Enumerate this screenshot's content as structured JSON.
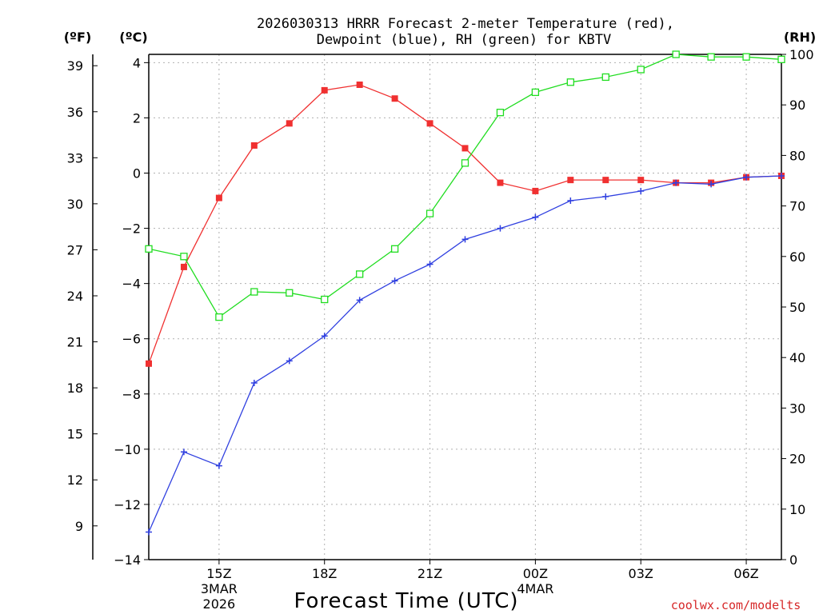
{
  "chart_data": {
    "type": "line",
    "title_line1": "2026030313 HRRR Forecast 2-meter Temperature (red),",
    "title_line2": "Dewpoint (blue), RH (green) for KBTV",
    "xlabel": "Forecast Time (UTC)",
    "credit": "coolwx.com/modelts",
    "units": {
      "fahrenheit": "(ºF)",
      "celsius": "(ºC)",
      "rh": "(RH)"
    },
    "x_hours": [
      13,
      14,
      15,
      16,
      17,
      18,
      19,
      20,
      21,
      22,
      23,
      24,
      25,
      26,
      27,
      28,
      29,
      30,
      31
    ],
    "xlim": [
      13,
      31
    ],
    "x_ticks": [
      {
        "hour": 15,
        "label": "15Z",
        "sub1": "3MAR",
        "sub2": "2026"
      },
      {
        "hour": 18,
        "label": "18Z",
        "sub1": "",
        "sub2": ""
      },
      {
        "hour": 21,
        "label": "21Z",
        "sub1": "",
        "sub2": ""
      },
      {
        "hour": 24,
        "label": "00Z",
        "sub1": "4MAR",
        "sub2": ""
      },
      {
        "hour": 27,
        "label": "03Z",
        "sub1": "",
        "sub2": ""
      },
      {
        "hour": 30,
        "label": "06Z",
        "sub1": "",
        "sub2": ""
      }
    ],
    "celsius_range": [
      -14,
      4.3
    ],
    "celsius_ticks": [
      "4",
      "2",
      "0",
      "−2",
      "−4",
      "−6",
      "−8",
      "−10",
      "−12",
      "−14"
    ],
    "fahrenheit_ticks": [
      "39",
      "36",
      "33",
      "30",
      "27",
      "24",
      "21",
      "18",
      "15",
      "12",
      "9"
    ],
    "rh_range": [
      0,
      100
    ],
    "rh_ticks": [
      "100",
      "90",
      "80",
      "70",
      "60",
      "50",
      "40",
      "30",
      "20",
      "10",
      "0"
    ],
    "grid": true,
    "series": [
      {
        "name": "Temperature",
        "unit": "C",
        "color": "#f03030",
        "marker": "filled-square",
        "values": [
          -6.9,
          -3.4,
          -0.9,
          1.0,
          1.8,
          3.0,
          3.2,
          2.7,
          1.8,
          0.9,
          -0.35,
          -0.65,
          -0.25,
          -0.25,
          -0.25,
          -0.35,
          -0.35,
          -0.15,
          -0.1
        ]
      },
      {
        "name": "Dewpoint",
        "unit": "C",
        "color": "#3040e0",
        "marker": "plus",
        "values": [
          -13.0,
          -10.1,
          -10.6,
          -7.6,
          -6.8,
          -5.9,
          -4.6,
          -3.9,
          -3.3,
          -2.4,
          -2.0,
          -1.6,
          -1.0,
          -0.85,
          -0.65,
          -0.35,
          -0.4,
          -0.15,
          -0.1
        ]
      },
      {
        "name": "RH",
        "unit": "%",
        "color": "#20dd20",
        "marker": "open-square",
        "values": [
          61.5,
          60.0,
          48.0,
          53.0,
          52.8,
          51.5,
          56.5,
          61.5,
          68.5,
          78.5,
          88.5,
          92.5,
          94.5,
          95.5,
          97.0,
          100.0,
          99.5,
          99.5,
          99.0
        ]
      }
    ]
  }
}
